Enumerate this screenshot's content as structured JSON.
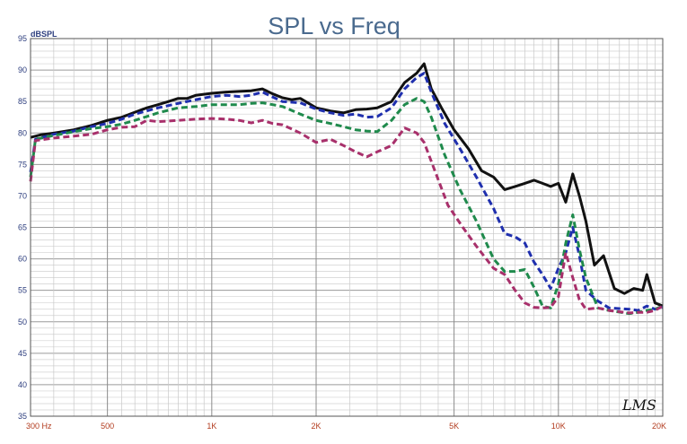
{
  "chart_data": {
    "type": "line",
    "title": "SPL vs Freq",
    "ylabel": "dBSPL",
    "xlabel": "",
    "x_scale": "log",
    "xlim": [
      300,
      20000
    ],
    "ylim": [
      35,
      95
    ],
    "grid": true,
    "y_ticks": [
      "35",
      "40",
      "45",
      "50",
      "55",
      "60",
      "65",
      "70",
      "75",
      "80",
      "85",
      "90",
      "95"
    ],
    "x_ticks": [
      {
        "value": 300,
        "label": "300 Hz"
      },
      {
        "value": 500,
        "label": "500"
      },
      {
        "value": 1000,
        "label": "1K"
      },
      {
        "value": 2000,
        "label": "2K"
      },
      {
        "value": 5000,
        "label": "5K"
      },
      {
        "value": 10000,
        "label": "10K"
      },
      {
        "value": 20000,
        "label": "20K"
      }
    ],
    "logo_text": "LMS",
    "series": [
      {
        "color": "#111111",
        "dashed": false,
        "points": [
          [
            300,
            79.3
          ],
          [
            320,
            79.7
          ],
          [
            350,
            80
          ],
          [
            400,
            80.5
          ],
          [
            450,
            81.2
          ],
          [
            500,
            82
          ],
          [
            550,
            82.5
          ],
          [
            600,
            83.3
          ],
          [
            650,
            84
          ],
          [
            700,
            84.5
          ],
          [
            750,
            85
          ],
          [
            800,
            85.5
          ],
          [
            850,
            85.5
          ],
          [
            900,
            86
          ],
          [
            1000,
            86.3
          ],
          [
            1100,
            86.5
          ],
          [
            1200,
            86.6
          ],
          [
            1300,
            86.7
          ],
          [
            1400,
            87
          ],
          [
            1500,
            86.2
          ],
          [
            1600,
            85.6
          ],
          [
            1700,
            85.3
          ],
          [
            1800,
            85.5
          ],
          [
            2000,
            84
          ],
          [
            2200,
            83.5
          ],
          [
            2400,
            83.2
          ],
          [
            2600,
            83.7
          ],
          [
            2800,
            83.8
          ],
          [
            3000,
            84
          ],
          [
            3300,
            85
          ],
          [
            3600,
            88
          ],
          [
            3900,
            89.5
          ],
          [
            4100,
            91
          ],
          [
            4300,
            87
          ],
          [
            4600,
            84
          ],
          [
            5000,
            80.5
          ],
          [
            5500,
            77.5
          ],
          [
            6000,
            74
          ],
          [
            6500,
            73
          ],
          [
            7000,
            71
          ],
          [
            7500,
            71.5
          ],
          [
            8000,
            72
          ],
          [
            8500,
            72.5
          ],
          [
            9000,
            72
          ],
          [
            9500,
            71.5
          ],
          [
            10000,
            72
          ],
          [
            10500,
            69
          ],
          [
            11000,
            73.5
          ],
          [
            11500,
            70
          ],
          [
            12000,
            66
          ],
          [
            12700,
            59
          ],
          [
            13500,
            60.5
          ],
          [
            14500,
            55.3
          ],
          [
            15500,
            54.5
          ],
          [
            16500,
            55.3
          ],
          [
            17500,
            55
          ],
          [
            18000,
            57.5
          ],
          [
            19000,
            53
          ],
          [
            20000,
            52.5
          ]
        ]
      },
      {
        "color": "#1f2fae",
        "dashed": true,
        "points": [
          [
            300,
            73.8
          ],
          [
            310,
            79
          ],
          [
            350,
            79.8
          ],
          [
            400,
            80.3
          ],
          [
            450,
            81
          ],
          [
            500,
            81.5
          ],
          [
            550,
            82.2
          ],
          [
            600,
            83
          ],
          [
            700,
            84
          ],
          [
            800,
            84.7
          ],
          [
            900,
            85.3
          ],
          [
            1000,
            85.8
          ],
          [
            1100,
            86
          ],
          [
            1200,
            85.8
          ],
          [
            1300,
            86
          ],
          [
            1400,
            86.5
          ],
          [
            1500,
            85.7
          ],
          [
            1600,
            85
          ],
          [
            1800,
            84.8
          ],
          [
            2000,
            83.8
          ],
          [
            2200,
            83.2
          ],
          [
            2400,
            82.8
          ],
          [
            2600,
            83
          ],
          [
            2800,
            82.5
          ],
          [
            3000,
            82.6
          ],
          [
            3300,
            84
          ],
          [
            3600,
            87
          ],
          [
            3900,
            88.8
          ],
          [
            4100,
            89.5
          ],
          [
            4300,
            86.5
          ],
          [
            4700,
            81.5
          ],
          [
            5200,
            77.5
          ],
          [
            5800,
            73
          ],
          [
            6500,
            68
          ],
          [
            7000,
            64
          ],
          [
            7500,
            63.5
          ],
          [
            8000,
            62.5
          ],
          [
            8500,
            59.5
          ],
          [
            9000,
            57.5
          ],
          [
            9500,
            55.3
          ],
          [
            10000,
            58.5
          ],
          [
            10500,
            61
          ],
          [
            11000,
            65
          ],
          [
            11500,
            60.5
          ],
          [
            12000,
            55
          ],
          [
            13000,
            53.3
          ],
          [
            14000,
            52.2
          ],
          [
            16000,
            52
          ],
          [
            17000,
            51.8
          ],
          [
            18000,
            52.5
          ],
          [
            19000,
            52
          ],
          [
            20000,
            52.3
          ]
        ]
      },
      {
        "color": "#1f8a4c",
        "dashed": true,
        "points": [
          [
            300,
            73
          ],
          [
            310,
            79
          ],
          [
            350,
            79.6
          ],
          [
            400,
            80.2
          ],
          [
            450,
            80.7
          ],
          [
            500,
            81
          ],
          [
            550,
            81.4
          ],
          [
            600,
            82
          ],
          [
            700,
            83.2
          ],
          [
            800,
            84
          ],
          [
            900,
            84.2
          ],
          [
            1000,
            84.5
          ],
          [
            1100,
            84.5
          ],
          [
            1200,
            84.5
          ],
          [
            1300,
            84.7
          ],
          [
            1400,
            84.8
          ],
          [
            1500,
            84.5
          ],
          [
            1600,
            84.2
          ],
          [
            1800,
            83
          ],
          [
            2000,
            82
          ],
          [
            2200,
            81.5
          ],
          [
            2400,
            81
          ],
          [
            2600,
            80.5
          ],
          [
            2800,
            80.3
          ],
          [
            3000,
            80.2
          ],
          [
            3300,
            82
          ],
          [
            3600,
            84.5
          ],
          [
            3900,
            85.5
          ],
          [
            4100,
            85
          ],
          [
            4300,
            82.5
          ],
          [
            4700,
            76.5
          ],
          [
            5200,
            71
          ],
          [
            5800,
            66
          ],
          [
            6500,
            60
          ],
          [
            7000,
            58
          ],
          [
            7500,
            58
          ],
          [
            8000,
            58.3
          ],
          [
            8500,
            55.5
          ],
          [
            9000,
            52.5
          ],
          [
            9500,
            52.2
          ],
          [
            10000,
            56
          ],
          [
            10500,
            62.5
          ],
          [
            11000,
            67
          ],
          [
            11500,
            61.5
          ],
          [
            12000,
            57
          ],
          [
            13000,
            52.2
          ],
          [
            14000,
            51.8
          ],
          [
            16000,
            51.3
          ],
          [
            17000,
            51.5
          ],
          [
            18000,
            51.8
          ],
          [
            19000,
            52
          ],
          [
            20000,
            52.5
          ]
        ]
      },
      {
        "color": "#a8306b",
        "dashed": true,
        "points": [
          [
            300,
            72.3
          ],
          [
            310,
            78.8
          ],
          [
            350,
            79.2
          ],
          [
            400,
            79.5
          ],
          [
            450,
            79.8
          ],
          [
            500,
            80.5
          ],
          [
            550,
            80.9
          ],
          [
            600,
            81
          ],
          [
            650,
            82
          ],
          [
            700,
            81.8
          ],
          [
            800,
            82
          ],
          [
            900,
            82.2
          ],
          [
            1000,
            82.3
          ],
          [
            1100,
            82.2
          ],
          [
            1200,
            82
          ],
          [
            1300,
            81.6
          ],
          [
            1400,
            82
          ],
          [
            1500,
            81.5
          ],
          [
            1600,
            81.3
          ],
          [
            1800,
            80
          ],
          [
            2000,
            78.5
          ],
          [
            2200,
            79
          ],
          [
            2400,
            78
          ],
          [
            2600,
            77
          ],
          [
            2800,
            76.2
          ],
          [
            3000,
            77
          ],
          [
            3300,
            78
          ],
          [
            3600,
            80.8
          ],
          [
            3900,
            80
          ],
          [
            4100,
            78.5
          ],
          [
            4400,
            74
          ],
          [
            4800,
            68.5
          ],
          [
            5300,
            65
          ],
          [
            5800,
            62
          ],
          [
            6500,
            58.5
          ],
          [
            7000,
            57.5
          ],
          [
            7500,
            55
          ],
          [
            8000,
            53
          ],
          [
            8500,
            52.3
          ],
          [
            9000,
            52.2
          ],
          [
            9500,
            52.3
          ],
          [
            10000,
            54
          ],
          [
            10500,
            61
          ],
          [
            11000,
            57
          ],
          [
            11500,
            53.5
          ],
          [
            12000,
            52
          ],
          [
            13000,
            52.2
          ],
          [
            14000,
            51.8
          ],
          [
            16000,
            51.4
          ],
          [
            17000,
            51.5
          ],
          [
            18000,
            51.5
          ],
          [
            19000,
            51.8
          ],
          [
            20000,
            52.5
          ]
        ]
      }
    ]
  }
}
